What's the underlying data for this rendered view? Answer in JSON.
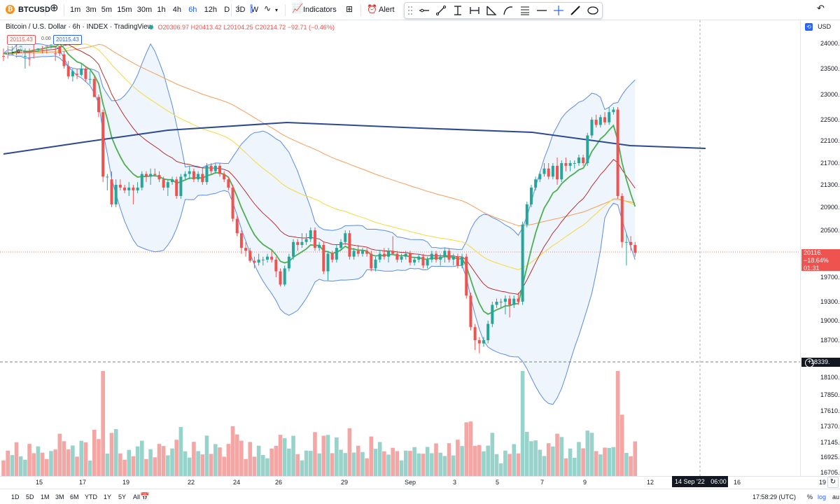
{
  "toolbar": {
    "symbol": "BTCUSD",
    "intervals": [
      "1m",
      "3m",
      "5m",
      "15m",
      "30m",
      "1h",
      "4h",
      "6h",
      "12h",
      "D",
      "3D",
      "W"
    ],
    "active_interval": "6h",
    "indicators_label": "Indicators",
    "alert_label": "Alert"
  },
  "legend": {
    "title": "Bitcoin / U.S. Dollar · 6h · INDEX · TradingView",
    "open": "O20306.97",
    "high": "H20413.42",
    "low": "L20104.25",
    "close": "C20214.72",
    "change": "−92.71 (−0.46%)",
    "sell_price": "20115.43",
    "spread": "0.00",
    "buy_price": "20115.43",
    "indicator_count": "6"
  },
  "price_scale": {
    "currency": "USD",
    "ticks": [
      "24000.00",
      "23500.00",
      "23000.00",
      "22500.00",
      "22100.00",
      "21700.00",
      "21300.00",
      "20900.00",
      "20500.00",
      "19700.00",
      "19300.00",
      "19000.00",
      "18700.00",
      "18100.00",
      "17850.00",
      "17610.00",
      "17370.00",
      "17145.00",
      "16925.00",
      "16705.00"
    ],
    "last_price": "20116.",
    "last_change": "−18.64%",
    "countdown": "01:31",
    "crosshair_price": "18339."
  },
  "time_axis": {
    "labels": [
      "15",
      "17",
      "19",
      "22",
      "24",
      "26",
      "29",
      "Sep",
      "3",
      "5",
      "7",
      "9",
      "12",
      "16",
      "19"
    ],
    "crosshair_label": "14 Sep '22",
    "crosshair_time": "06:00"
  },
  "bottom_bar": {
    "ranges": [
      "1D",
      "5D",
      "1M",
      "3M",
      "6M",
      "YTD",
      "1Y",
      "5Y",
      "All"
    ],
    "clock": "17:58:29 (UTC)",
    "percent_label": "%",
    "log_label": "log",
    "auto_label": "au"
  },
  "colors": {
    "up": "#26a69a",
    "down": "#ef5350",
    "bb_line": "#5b8be8",
    "ma_long": "#2d4a8f",
    "ma_fast": "#4caf50",
    "ma_mid": "#b71c1c",
    "ma_yellow": "#f5d93a",
    "ma_orange": "#f59e5b"
  },
  "chart_data": {
    "type": "candlestick",
    "interval": "6h",
    "currency": "USD",
    "y_range": [
      16705,
      24000
    ],
    "x_labels": [
      "15",
      "17",
      "19",
      "22",
      "24",
      "26",
      "29",
      "Sep",
      "3",
      "5",
      "7",
      "9",
      "12",
      "16",
      "19"
    ],
    "candles": [
      {
        "o": 24250,
        "h": 24350,
        "l": 24100,
        "c": 24200
      },
      {
        "o": 24200,
        "h": 24300,
        "l": 24050,
        "c": 24150
      },
      {
        "o": 24100,
        "h": 24250,
        "l": 23950,
        "c": 24180
      },
      {
        "o": 24180,
        "h": 24280,
        "l": 24000,
        "c": 24050
      },
      {
        "o": 24050,
        "h": 24150,
        "l": 23900,
        "c": 24050
      },
      {
        "o": 24200,
        "h": 24500,
        "l": 24100,
        "c": 24250
      },
      {
        "o": 24300,
        "h": 24450,
        "l": 24100,
        "c": 24150
      },
      {
        "o": 24150,
        "h": 24300,
        "l": 24000,
        "c": 24050
      },
      {
        "o": 24050,
        "h": 24150,
        "l": 23900,
        "c": 24100
      },
      {
        "o": 24100,
        "h": 24200,
        "l": 23950,
        "c": 24050
      },
      {
        "o": 24050,
        "h": 24200,
        "l": 23900,
        "c": 24000
      },
      {
        "o": 24000,
        "h": 24100,
        "l": 23950,
        "c": 24020
      },
      {
        "o": 24200,
        "h": 24350,
        "l": 23950,
        "c": 24050
      },
      {
        "o": 24050,
        "h": 24150,
        "l": 23750,
        "c": 23800
      },
      {
        "o": 23780,
        "h": 23850,
        "l": 23500,
        "c": 23550
      },
      {
        "o": 23550,
        "h": 23650,
        "l": 23300,
        "c": 23350
      },
      {
        "o": 23350,
        "h": 23500,
        "l": 23250,
        "c": 23450
      },
      {
        "o": 23400,
        "h": 23500,
        "l": 23300,
        "c": 23380
      },
      {
        "o": 23380,
        "h": 23600,
        "l": 23350,
        "c": 23500
      },
      {
        "o": 23500,
        "h": 23550,
        "l": 23250,
        "c": 23300
      },
      {
        "o": 23300,
        "h": 23450,
        "l": 23200,
        "c": 23300
      },
      {
        "o": 23300,
        "h": 23350,
        "l": 22950,
        "c": 22950
      },
      {
        "o": 22950,
        "h": 23000,
        "l": 22550,
        "c": 22650
      },
      {
        "o": 22650,
        "h": 22700,
        "l": 21350,
        "c": 21450
      },
      {
        "o": 21450,
        "h": 21500,
        "l": 21200,
        "c": 21450
      },
      {
        "o": 21400,
        "h": 21550,
        "l": 20900,
        "c": 20950
      },
      {
        "o": 20950,
        "h": 21400,
        "l": 20900,
        "c": 21300
      },
      {
        "o": 21300,
        "h": 21400,
        "l": 21200,
        "c": 21250
      },
      {
        "o": 21250,
        "h": 21300,
        "l": 21150,
        "c": 21200
      },
      {
        "o": 21200,
        "h": 21350,
        "l": 21100,
        "c": 21250
      },
      {
        "o": 21250,
        "h": 21300,
        "l": 20950,
        "c": 21200
      },
      {
        "o": 21200,
        "h": 21350,
        "l": 21150,
        "c": 21250
      },
      {
        "o": 21250,
        "h": 21550,
        "l": 21200,
        "c": 21500
      },
      {
        "o": 21500,
        "h": 21550,
        "l": 21350,
        "c": 21450
      },
      {
        "o": 21450,
        "h": 21600,
        "l": 21300,
        "c": 21500
      },
      {
        "o": 21500,
        "h": 21600,
        "l": 21450,
        "c": 21480
      },
      {
        "o": 21480,
        "h": 21550,
        "l": 21350,
        "c": 21400
      },
      {
        "o": 21400,
        "h": 21450,
        "l": 21200,
        "c": 21250
      },
      {
        "o": 21250,
        "h": 21400,
        "l": 21100,
        "c": 21350
      },
      {
        "o": 21350,
        "h": 21450,
        "l": 21300,
        "c": 21400
      },
      {
        "o": 21400,
        "h": 21450,
        "l": 21050,
        "c": 21100
      },
      {
        "o": 21100,
        "h": 21500,
        "l": 21050,
        "c": 21450
      },
      {
        "o": 21450,
        "h": 21550,
        "l": 21400,
        "c": 21500
      },
      {
        "o": 21500,
        "h": 21650,
        "l": 21400,
        "c": 21550
      },
      {
        "o": 21550,
        "h": 21600,
        "l": 21350,
        "c": 21400
      },
      {
        "o": 21400,
        "h": 21550,
        "l": 21350,
        "c": 21500
      },
      {
        "o": 21500,
        "h": 21600,
        "l": 21300,
        "c": 21350
      },
      {
        "o": 21350,
        "h": 21700,
        "l": 21300,
        "c": 21650
      },
      {
        "o": 21650,
        "h": 21700,
        "l": 21500,
        "c": 21550
      },
      {
        "o": 21550,
        "h": 21700,
        "l": 21500,
        "c": 21650
      },
      {
        "o": 21650,
        "h": 21700,
        "l": 21450,
        "c": 21500
      },
      {
        "o": 21500,
        "h": 21550,
        "l": 21350,
        "c": 21400
      },
      {
        "o": 21400,
        "h": 21450,
        "l": 21200,
        "c": 21250
      },
      {
        "o": 21250,
        "h": 21300,
        "l": 20650,
        "c": 20700
      },
      {
        "o": 20700,
        "h": 20750,
        "l": 20400,
        "c": 20450
      },
      {
        "o": 20450,
        "h": 20500,
        "l": 20100,
        "c": 20200
      },
      {
        "o": 20200,
        "h": 20300,
        "l": 20050,
        "c": 20150
      },
      {
        "o": 20150,
        "h": 20200,
        "l": 19950,
        "c": 19980
      },
      {
        "o": 19980,
        "h": 20050,
        "l": 19850,
        "c": 19950
      },
      {
        "o": 19950,
        "h": 20100,
        "l": 19900,
        "c": 20000
      },
      {
        "o": 20000,
        "h": 20050,
        "l": 19900,
        "c": 20000
      },
      {
        "o": 20000,
        "h": 20100,
        "l": 19950,
        "c": 20050
      },
      {
        "o": 20050,
        "h": 20150,
        "l": 19950,
        "c": 20000
      },
      {
        "o": 20000,
        "h": 20050,
        "l": 19700,
        "c": 19800
      },
      {
        "o": 19800,
        "h": 19850,
        "l": 19550,
        "c": 19580
      },
      {
        "o": 19580,
        "h": 19900,
        "l": 19550,
        "c": 19850
      },
      {
        "o": 19850,
        "h": 20100,
        "l": 19800,
        "c": 20050
      },
      {
        "o": 20050,
        "h": 20350,
        "l": 20000,
        "c": 20300
      },
      {
        "o": 20300,
        "h": 20350,
        "l": 20150,
        "c": 20250
      },
      {
        "o": 20250,
        "h": 20450,
        "l": 20200,
        "c": 20300
      },
      {
        "o": 20300,
        "h": 20450,
        "l": 20250,
        "c": 20350
      },
      {
        "o": 20350,
        "h": 20550,
        "l": 20300,
        "c": 20500
      },
      {
        "o": 20500,
        "h": 20550,
        "l": 20150,
        "c": 20200
      },
      {
        "o": 20200,
        "h": 20300,
        "l": 20150,
        "c": 20250
      },
      {
        "o": 20250,
        "h": 20300,
        "l": 19750,
        "c": 19800
      },
      {
        "o": 19800,
        "h": 20150,
        "l": 19650,
        "c": 20100
      },
      {
        "o": 20100,
        "h": 20150,
        "l": 19950,
        "c": 20000
      },
      {
        "o": 20000,
        "h": 20250,
        "l": 19950,
        "c": 20200
      },
      {
        "o": 20200,
        "h": 20350,
        "l": 20150,
        "c": 20300
      },
      {
        "o": 20300,
        "h": 20500,
        "l": 20250,
        "c": 20450
      },
      {
        "o": 20450,
        "h": 20500,
        "l": 20000,
        "c": 20050
      },
      {
        "o": 20050,
        "h": 20200,
        "l": 20000,
        "c": 20150
      },
      {
        "o": 20150,
        "h": 20250,
        "l": 20050,
        "c": 20100
      },
      {
        "o": 20100,
        "h": 20200,
        "l": 20050,
        "c": 20150
      },
      {
        "o": 20150,
        "h": 20200,
        "l": 20050,
        "c": 20100
      },
      {
        "o": 20100,
        "h": 20150,
        "l": 19800,
        "c": 19850
      },
      {
        "o": 19850,
        "h": 20050,
        "l": 19800,
        "c": 20000
      },
      {
        "o": 20000,
        "h": 20150,
        "l": 19950,
        "c": 20100
      },
      {
        "o": 20100,
        "h": 20200,
        "l": 20000,
        "c": 20050
      },
      {
        "o": 20050,
        "h": 20200,
        "l": 19950,
        "c": 20150
      },
      {
        "o": 20150,
        "h": 20400,
        "l": 20100,
        "c": 20100
      },
      {
        "o": 20100,
        "h": 20150,
        "l": 19950,
        "c": 20000
      },
      {
        "o": 20000,
        "h": 20100,
        "l": 19950,
        "c": 20050
      },
      {
        "o": 20050,
        "h": 20150,
        "l": 20000,
        "c": 20100
      },
      {
        "o": 20100,
        "h": 20150,
        "l": 19900,
        "c": 19950
      },
      {
        "o": 19950,
        "h": 20050,
        "l": 19900,
        "c": 20000
      },
      {
        "o": 20000,
        "h": 20100,
        "l": 19950,
        "c": 20050
      },
      {
        "o": 20050,
        "h": 20100,
        "l": 19850,
        "c": 19900
      },
      {
        "o": 19900,
        "h": 20050,
        "l": 19850,
        "c": 20000
      },
      {
        "o": 20000,
        "h": 20150,
        "l": 19950,
        "c": 20100
      },
      {
        "o": 20100,
        "h": 20150,
        "l": 19950,
        "c": 20000
      },
      {
        "o": 20000,
        "h": 20100,
        "l": 19900,
        "c": 20050
      },
      {
        "o": 20050,
        "h": 20200,
        "l": 19950,
        "c": 20150
      },
      {
        "o": 20150,
        "h": 20200,
        "l": 19950,
        "c": 20000
      },
      {
        "o": 20000,
        "h": 20100,
        "l": 19900,
        "c": 20050
      },
      {
        "o": 20050,
        "h": 20100,
        "l": 19850,
        "c": 19900
      },
      {
        "o": 19900,
        "h": 20100,
        "l": 19850,
        "c": 20050
      },
      {
        "o": 20050,
        "h": 20100,
        "l": 19350,
        "c": 19400
      },
      {
        "o": 19400,
        "h": 19450,
        "l": 18850,
        "c": 18900
      },
      {
        "o": 18900,
        "h": 18950,
        "l": 18550,
        "c": 18700
      },
      {
        "o": 18700,
        "h": 18750,
        "l": 18500,
        "c": 18650
      },
      {
        "o": 18650,
        "h": 18750,
        "l": 18600,
        "c": 18700
      },
      {
        "o": 18700,
        "h": 19000,
        "l": 18650,
        "c": 18950
      },
      {
        "o": 18950,
        "h": 19300,
        "l": 18900,
        "c": 19250
      },
      {
        "o": 19250,
        "h": 19350,
        "l": 19200,
        "c": 19300
      },
      {
        "o": 19300,
        "h": 19350,
        "l": 19200,
        "c": 19300
      },
      {
        "o": 19300,
        "h": 19400,
        "l": 19100,
        "c": 19350
      },
      {
        "o": 19350,
        "h": 19400,
        "l": 19050,
        "c": 19250
      },
      {
        "o": 19250,
        "h": 19400,
        "l": 19200,
        "c": 19350
      },
      {
        "o": 19350,
        "h": 19450,
        "l": 19250,
        "c": 19300
      },
      {
        "o": 19300,
        "h": 20650,
        "l": 19250,
        "c": 20600
      },
      {
        "o": 20600,
        "h": 21000,
        "l": 20550,
        "c": 20950
      },
      {
        "o": 20950,
        "h": 21300,
        "l": 20900,
        "c": 21250
      },
      {
        "o": 21250,
        "h": 21450,
        "l": 21200,
        "c": 21400
      },
      {
        "o": 21400,
        "h": 21550,
        "l": 21350,
        "c": 21500
      },
      {
        "o": 21500,
        "h": 21700,
        "l": 21450,
        "c": 21600
      },
      {
        "o": 21600,
        "h": 21700,
        "l": 21400,
        "c": 21450
      },
      {
        "o": 21450,
        "h": 21700,
        "l": 21400,
        "c": 21650
      },
      {
        "o": 21650,
        "h": 21800,
        "l": 21300,
        "c": 21400
      },
      {
        "o": 21400,
        "h": 21750,
        "l": 21350,
        "c": 21700
      },
      {
        "o": 21700,
        "h": 21800,
        "l": 21550,
        "c": 21650
      },
      {
        "o": 21650,
        "h": 21750,
        "l": 21550,
        "c": 21700
      },
      {
        "o": 21700,
        "h": 21750,
        "l": 21600,
        "c": 21700
      },
      {
        "o": 21700,
        "h": 21850,
        "l": 21650,
        "c": 21800
      },
      {
        "o": 21800,
        "h": 21850,
        "l": 21650,
        "c": 21700
      },
      {
        "o": 21700,
        "h": 22250,
        "l": 21650,
        "c": 22200
      },
      {
        "o": 22200,
        "h": 22550,
        "l": 22150,
        "c": 22500
      },
      {
        "o": 22500,
        "h": 22600,
        "l": 22350,
        "c": 22400
      },
      {
        "o": 22400,
        "h": 22600,
        "l": 22350,
        "c": 22550
      },
      {
        "o": 22550,
        "h": 22650,
        "l": 22400,
        "c": 22450
      },
      {
        "o": 22450,
        "h": 22750,
        "l": 22400,
        "c": 22650
      },
      {
        "o": 22650,
        "h": 22750,
        "l": 22600,
        "c": 22700
      },
      {
        "o": 22700,
        "h": 22750,
        "l": 21050,
        "c": 21100
      },
      {
        "o": 21100,
        "h": 21150,
        "l": 20200,
        "c": 20300
      },
      {
        "o": 20300,
        "h": 20450,
        "l": 19900,
        "c": 20300
      },
      {
        "o": 20300,
        "h": 20400,
        "l": 20150,
        "c": 20250
      },
      {
        "o": 20250,
        "h": 20300,
        "l": 20050,
        "c": 20116
      }
    ]
  }
}
